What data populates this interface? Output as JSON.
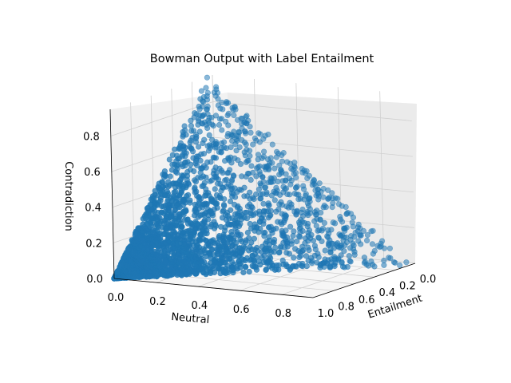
{
  "chart_data": {
    "type": "scatter",
    "projection": "3d",
    "title": "Bowman Output with Label Entailment",
    "xlabel": "Neutral",
    "ylabel": "Entailment",
    "zlabel": "Contradiction",
    "xlim": [
      0.0,
      0.95
    ],
    "ylim": [
      1.0,
      0.0
    ],
    "zlim": [
      0.0,
      0.95
    ],
    "xticks": [
      "0.0",
      "0.2",
      "0.4",
      "0.6",
      "0.8"
    ],
    "yticks": [
      "0.0",
      "0.2",
      "0.4",
      "0.6",
      "0.8",
      "1.0"
    ],
    "zticks": [
      "0.0",
      "0.2",
      "0.4",
      "0.6",
      "0.8"
    ],
    "grid": true,
    "marker_color": "#1f77b4",
    "point_count": 3000,
    "distribution_note": "points lie on the simplex neutral + entailment + contradiction = 1, concentrated toward high entailment; apex reaches contradiction ≈ 0.9"
  }
}
